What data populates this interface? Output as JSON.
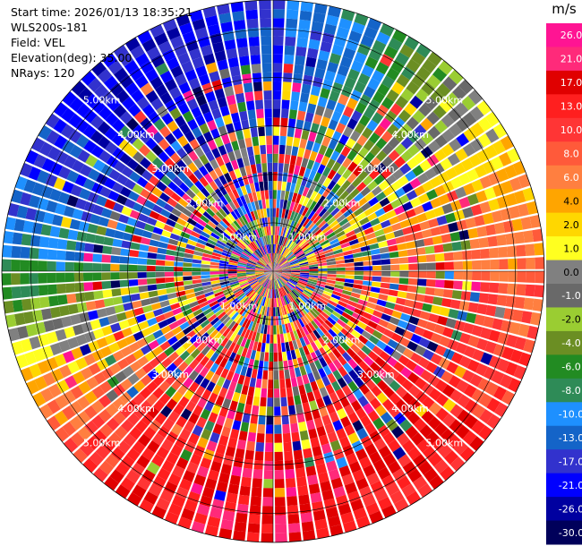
{
  "header": {
    "start_time": "Start time: 2026/01/13 18:35:21",
    "instrument": "WLS200s-181",
    "field": "Field: VEL",
    "elevation": "Elevation(deg): 35.00",
    "nrays": "NRays: 120"
  },
  "chart_data": {
    "type": "heatmap",
    "projection": "polar-ppi",
    "title": "",
    "n_rays": 120,
    "range_gates": 30,
    "max_range_km": 5.6,
    "range_rings_km": [
      1,
      2,
      3,
      4,
      5
    ],
    "ring_labels": [
      "1.00km",
      "2.00km",
      "3.00km",
      "4.00km",
      "5.00km"
    ],
    "colorbar": {
      "unit": "m/s",
      "ticks": [
        "26.0",
        "21.0",
        "17.0",
        "13.0",
        "10.0",
        "8.0",
        "6.0",
        "4.0",
        "2.0",
        "1.0",
        "0.0",
        "-1.0",
        "-2.0",
        "-4.0",
        "-6.0",
        "-8.0",
        "-10.0",
        "-13.0",
        "-17.0",
        "-21.0",
        "-26.0",
        "-30.0"
      ],
      "colors": [
        "#ff1493",
        "#ff2a7a",
        "#e00000",
        "#ff1f1f",
        "#ff3535",
        "#ff5a3a",
        "#ff7f40",
        "#ffa500",
        "#ffd700",
        "#ffff20",
        "#808080",
        "#696969",
        "#9acd32",
        "#6b8e23",
        "#228b22",
        "#2e8b57",
        "#1e90ff",
        "#1464c8",
        "#3232cd",
        "#0000ff",
        "#0000a0",
        "#00005a"
      ]
    },
    "sectors": [
      {
        "direction": "east",
        "dominant_velocity": "positive (1 to 26 m/s)"
      },
      {
        "direction": "south",
        "dominant_velocity": "positive (13 to 26 m/s)"
      },
      {
        "direction": "west",
        "dominant_velocity": "mixed (-8 to 8 m/s)"
      },
      {
        "direction": "north",
        "dominant_velocity": "negative (-13 to -30 m/s)"
      },
      {
        "direction": "northeast",
        "dominant_velocity": "mixed (-10 to 4 m/s)"
      }
    ],
    "pattern": "random noise near center, velocity folding coherence at outer gates"
  }
}
